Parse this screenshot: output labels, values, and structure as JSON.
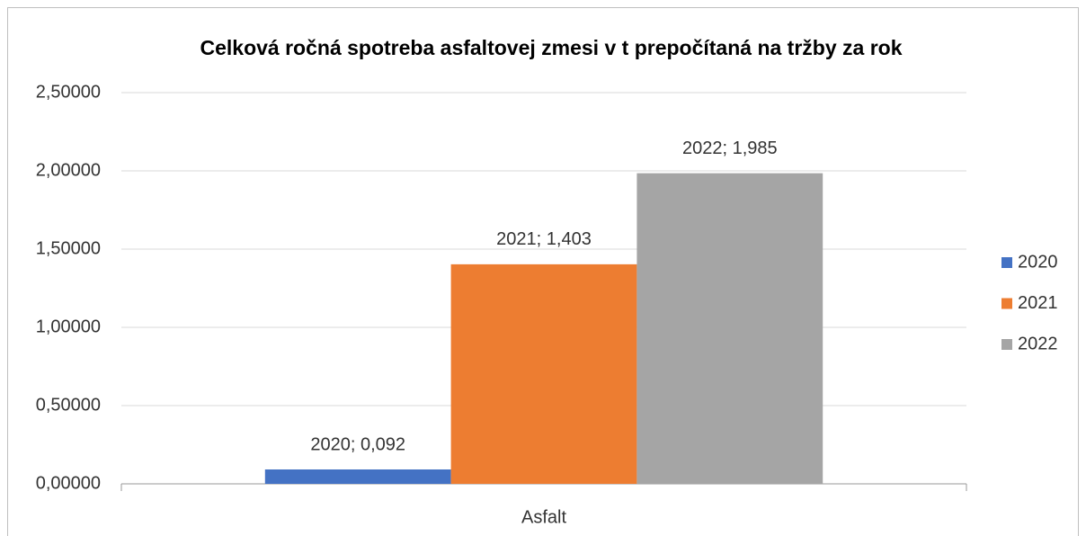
{
  "chart_data": {
    "type": "bar",
    "title": "Celková ročná spotreba asfaltovej zmesi v t prepočítaná na tržby za rok",
    "categories": [
      "Asfalt"
    ],
    "series": [
      {
        "name": "2020",
        "color": "#4472c4",
        "values": [
          0.092
        ],
        "value_labels": [
          "2020; 0,092"
        ]
      },
      {
        "name": "2021",
        "color": "#ed7d31",
        "values": [
          1.403
        ],
        "value_labels": [
          "2021; 1,403"
        ]
      },
      {
        "name": "2022",
        "color": "#a5a5a5",
        "values": [
          1.985
        ],
        "value_labels": [
          "2022; 1,985"
        ]
      }
    ],
    "ylim": [
      0,
      2.5
    ],
    "yticks": [
      {
        "value": 0,
        "label": "0,00000"
      },
      {
        "value": 0.5,
        "label": "0,50000"
      },
      {
        "value": 1,
        "label": "1,00000"
      },
      {
        "value": 1.5,
        "label": "1,50000"
      },
      {
        "value": 2,
        "label": "2,00000"
      },
      {
        "value": 2.5,
        "label": "2,50000"
      }
    ],
    "grid": true,
    "legend": "right"
  }
}
